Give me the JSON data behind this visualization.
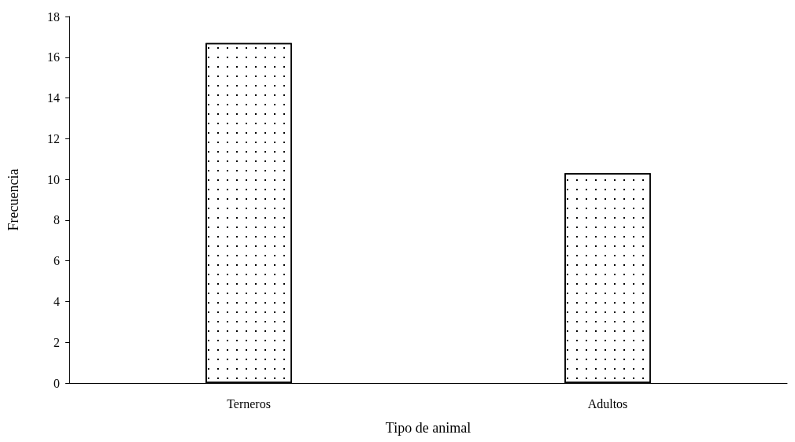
{
  "chart_data": {
    "type": "bar",
    "xlabel": "Tipo de animal",
    "ylabel": "Frecuencia",
    "categories": [
      "Terneros",
      "Adultos"
    ],
    "values": [
      16.7,
      10.3
    ],
    "color": "#ffffff",
    "ylim": [
      0,
      18
    ],
    "yticks": [
      0,
      2,
      4,
      6,
      8,
      10,
      12,
      14,
      16,
      18
    ],
    "grid": false
  }
}
